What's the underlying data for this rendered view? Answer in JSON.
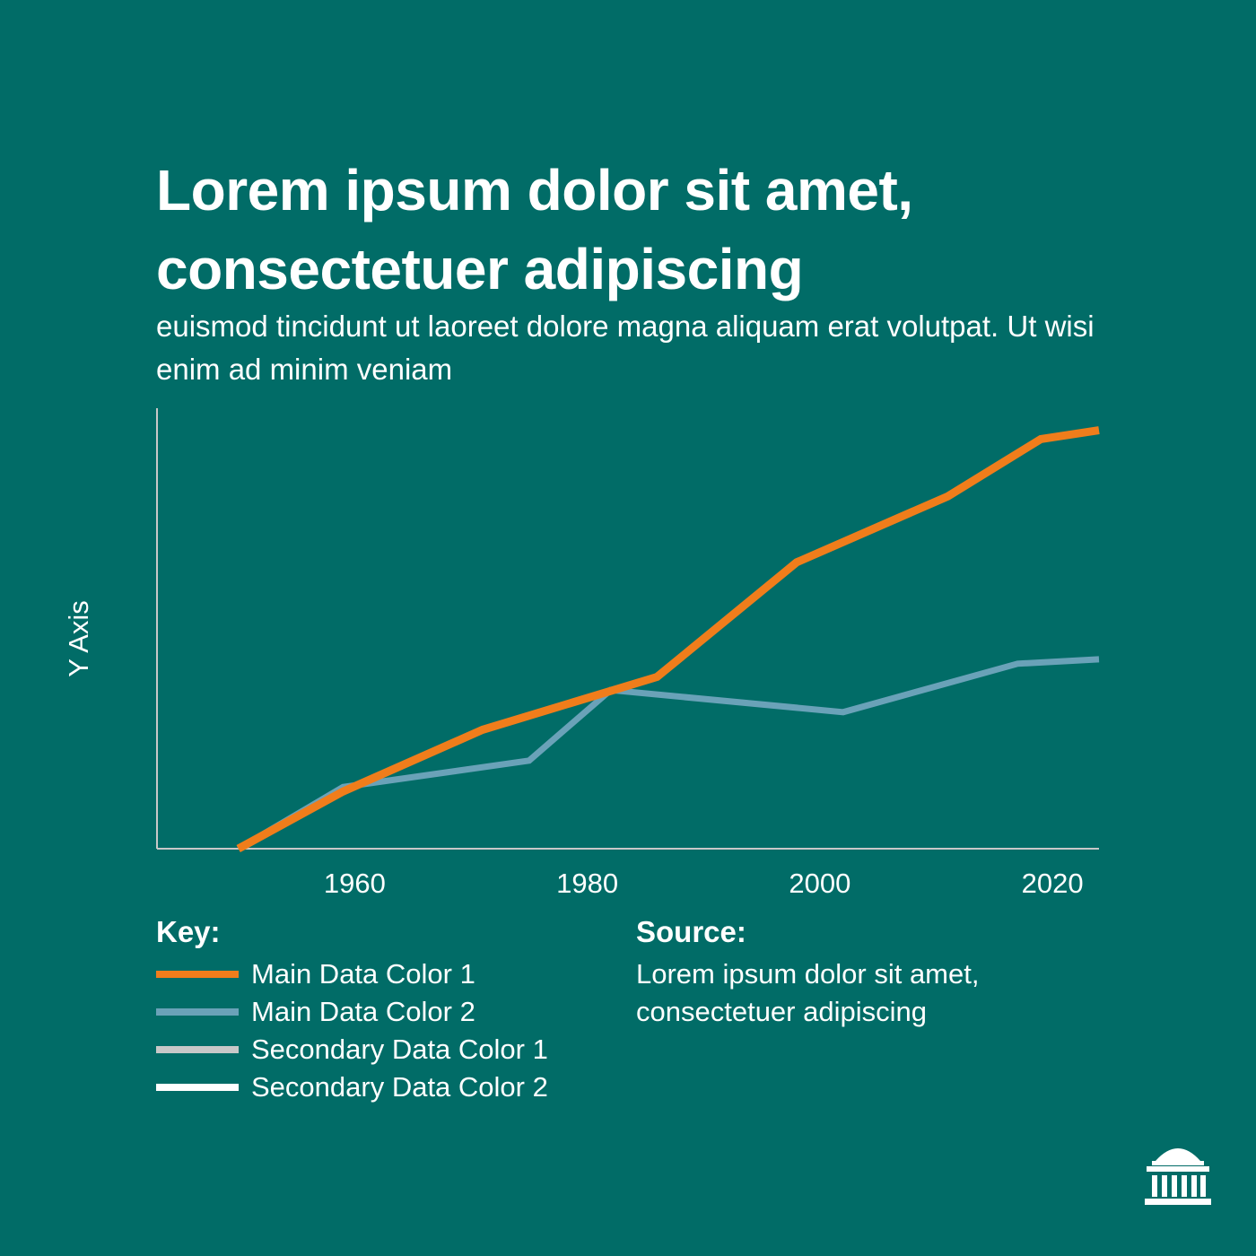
{
  "header": {
    "title": "Lorem ipsum dolor sit amet, consectetuer adipiscing",
    "subtitle": "euismod tincidunt ut laoreet dolore magna aliquam erat volutpat. Ut wisi enim ad minim veniam"
  },
  "colors": {
    "background": "#016c67",
    "main1": "#f07d1b",
    "main2": "#6aa2b8",
    "secondary1": "#c8c8c8",
    "secondary2": "#ffffff",
    "axis": "#c8c8c8",
    "text": "#ffffff"
  },
  "chart_data": {
    "type": "line",
    "title": "",
    "xlabel": "",
    "ylabel": "Y Axis",
    "xlim": [
      1943,
      2024
    ],
    "ylim": [
      0,
      100
    ],
    "xticks": [
      1960,
      1980,
      2000,
      2020
    ],
    "grid": false,
    "series": [
      {
        "name": "Main Data Color 1",
        "color": "#f07d1b",
        "x": [
          1950,
          1959,
          1971,
          1986,
          1998,
          2011,
          2019,
          2024
        ],
        "y": [
          0,
          13,
          27,
          39,
          65,
          80,
          93,
          95
        ]
      },
      {
        "name": "Main Data Color 2",
        "color": "#6aa2b8",
        "x": [
          1950,
          1959,
          1975,
          1982,
          2002,
          2017,
          2024
        ],
        "y": [
          0,
          14,
          20,
          36,
          31,
          42,
          43
        ]
      }
    ]
  },
  "legend": {
    "heading": "Key:",
    "items": [
      {
        "label": "Main Data Color 1",
        "color": "#f07d1b"
      },
      {
        "label": "Main Data Color 2",
        "color": "#6aa2b8"
      },
      {
        "label": "Secondary Data Color 1",
        "color": "#c8c8c8"
      },
      {
        "label": "Secondary Data Color 2",
        "color": "#ffffff"
      }
    ]
  },
  "source": {
    "heading": "Source:",
    "text": "Lorem ipsum dolor sit amet, consectetuer adipiscing"
  },
  "logo": {
    "icon": "dome-building-icon"
  }
}
